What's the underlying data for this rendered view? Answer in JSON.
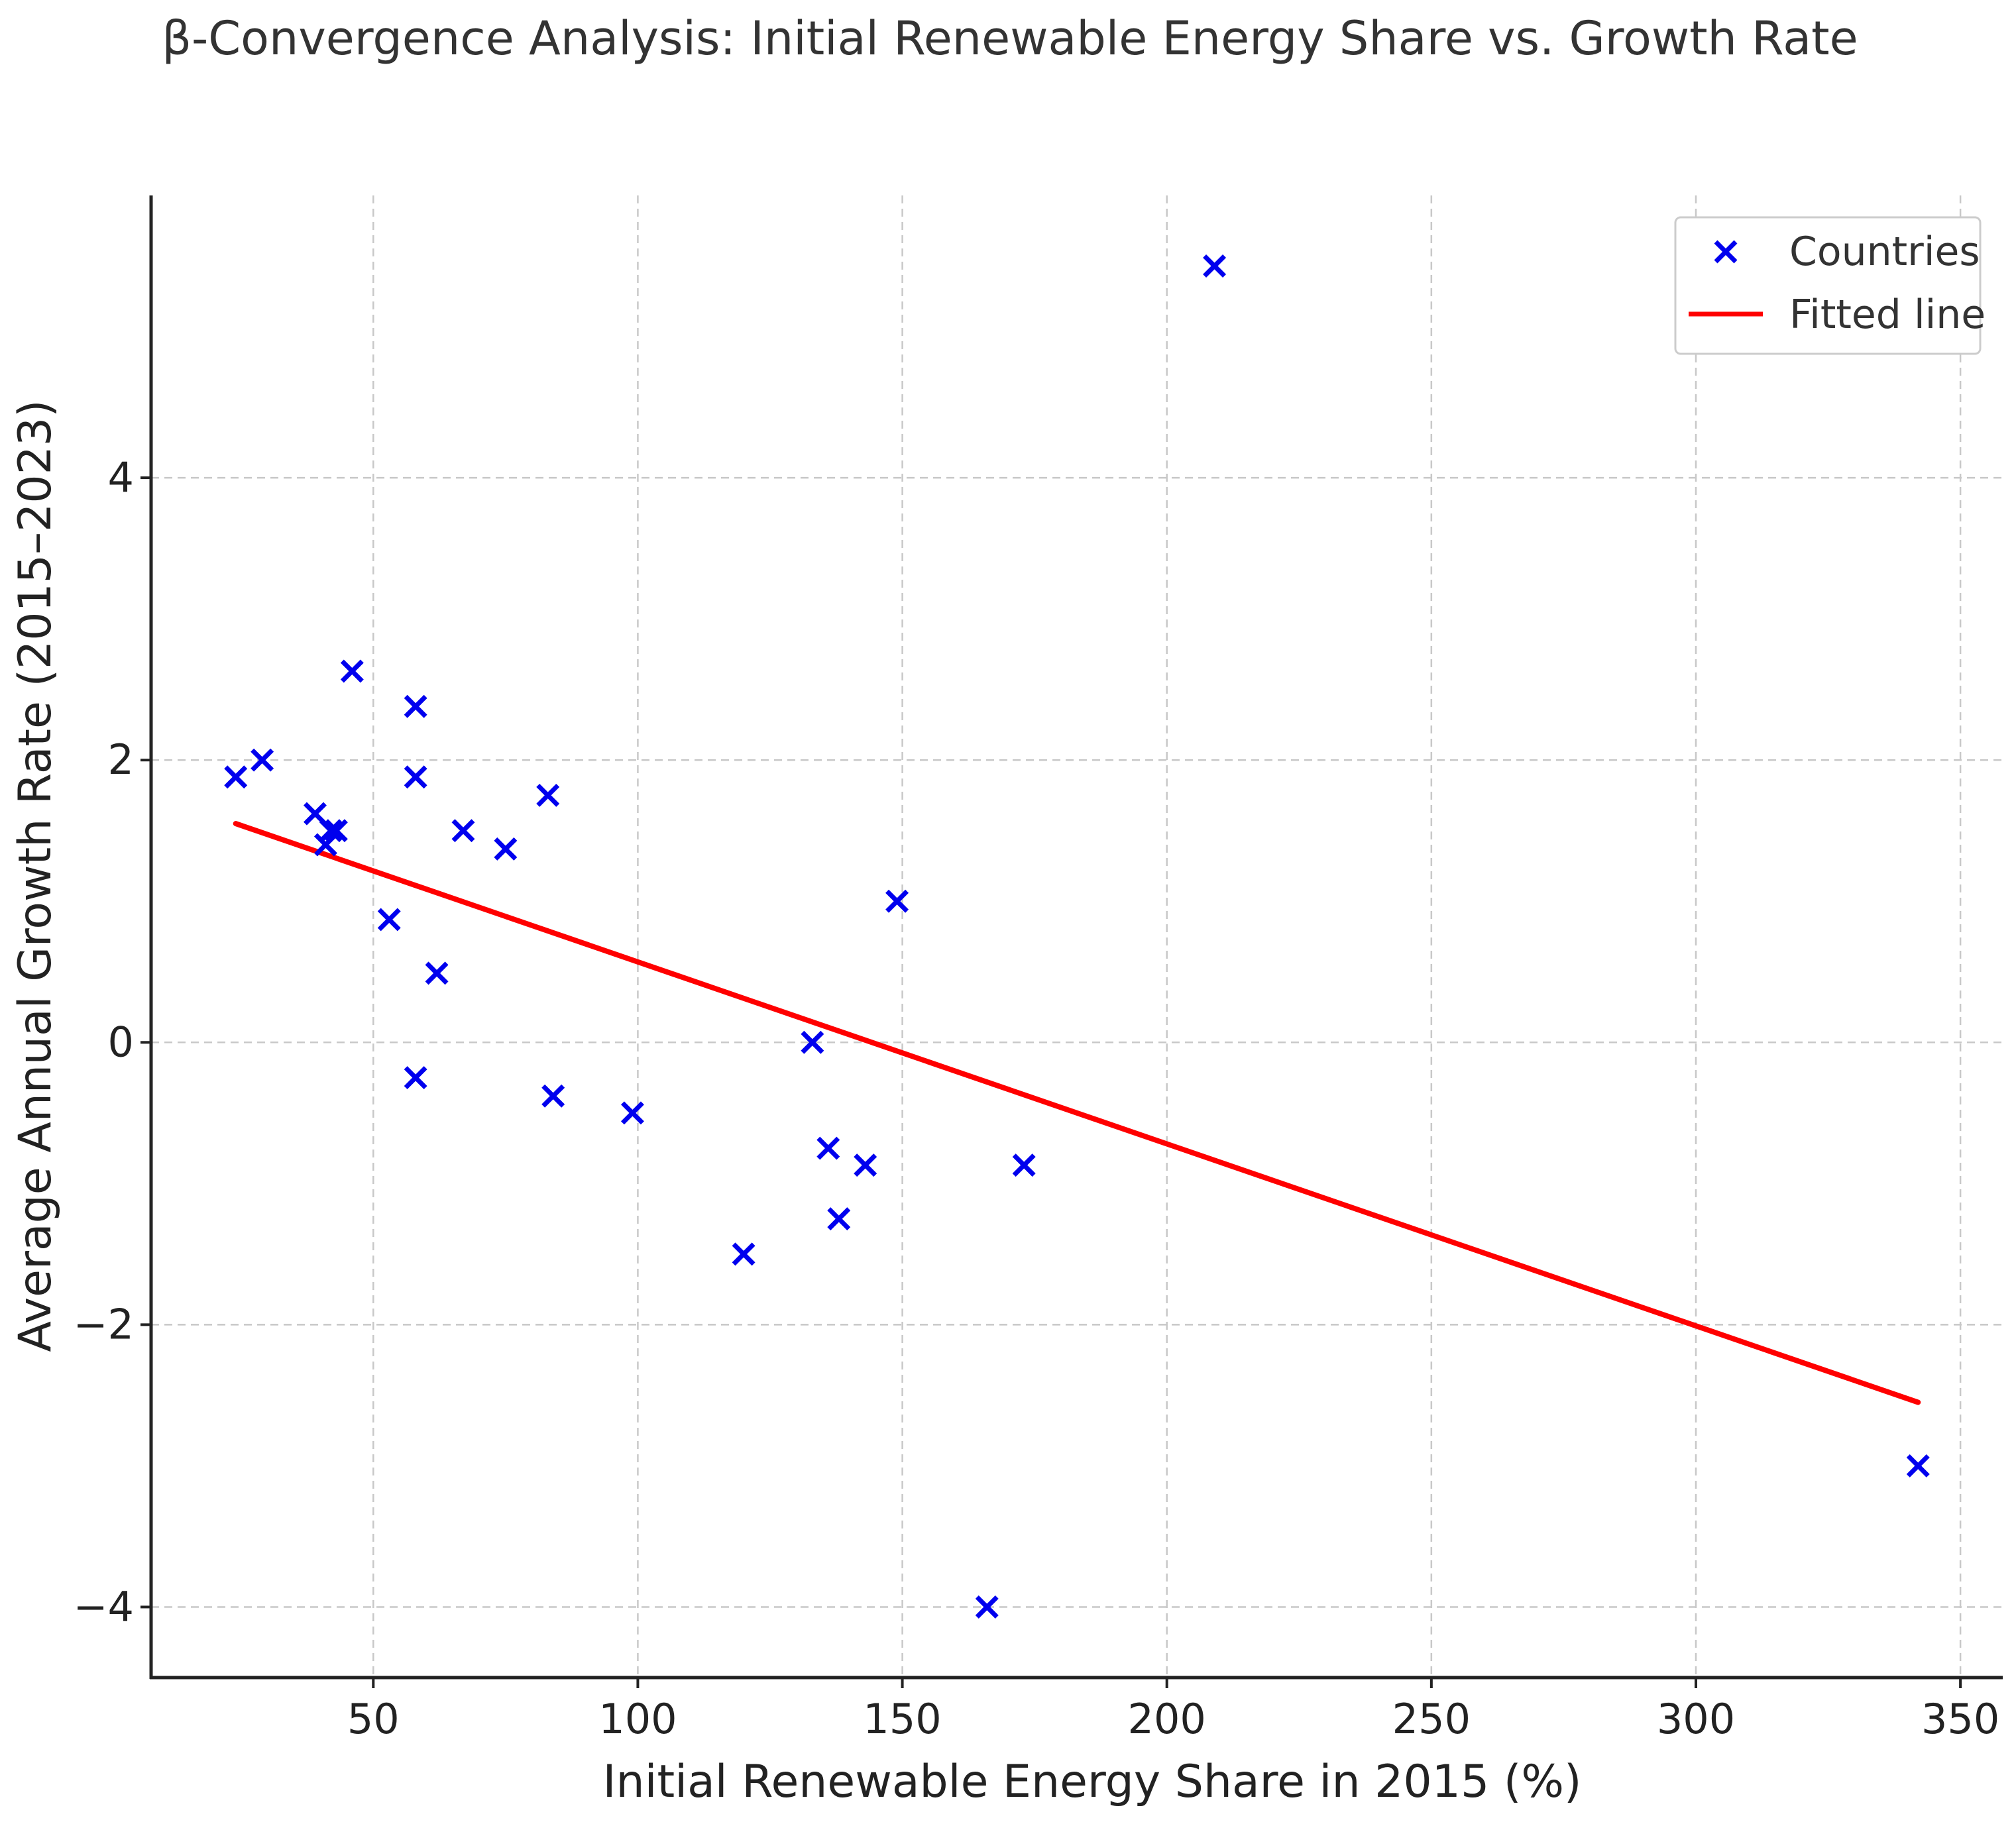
{
  "chart_data": {
    "type": "scatter",
    "title": "β-Convergence Analysis: Initial Renewable Energy Share vs. Growth Rate",
    "xlabel": "Initial Renewable Energy Share in 2015 (%)",
    "ylabel": "Average Annual Growth Rate (2015–2023)",
    "xlim": [
      8,
      358
    ],
    "ylim": [
      -4.5,
      6
    ],
    "xticks": [
      50,
      100,
      150,
      200,
      250,
      300,
      350
    ],
    "xtick_labels": [
      "50",
      "100",
      "150",
      "200",
      "250",
      "300",
      "350"
    ],
    "yticks": [
      -4,
      -2,
      0,
      2,
      4
    ],
    "ytick_labels": [
      "−4",
      "−2",
      "0",
      "2",
      "4"
    ],
    "grid": true,
    "legend_position": "top-right",
    "series": [
      {
        "name": "Countries",
        "kind": "scatter",
        "marker": "x",
        "color": "#0000ee",
        "x": [
          24,
          29,
          39,
          41,
          42,
          43,
          46,
          53,
          58,
          58,
          58,
          62,
          67,
          75,
          83,
          84,
          99,
          120,
          133,
          136,
          138,
          143,
          149,
          166,
          173,
          209,
          342
        ],
        "y": [
          1.88,
          2.0,
          1.62,
          1.4,
          1.5,
          1.5,
          2.63,
          0.87,
          2.38,
          1.88,
          -0.25,
          0.49,
          1.5,
          1.37,
          1.75,
          -0.38,
          -0.5,
          -1.5,
          0.0,
          -0.75,
          -1.25,
          -0.87,
          1.0,
          -4.0,
          -0.87,
          5.5,
          -3.0
        ]
      },
      {
        "name": "Fitted line",
        "kind": "line",
        "color": "#ff0000",
        "x": [
          24,
          342
        ],
        "y": [
          1.55,
          -2.55
        ]
      }
    ]
  }
}
